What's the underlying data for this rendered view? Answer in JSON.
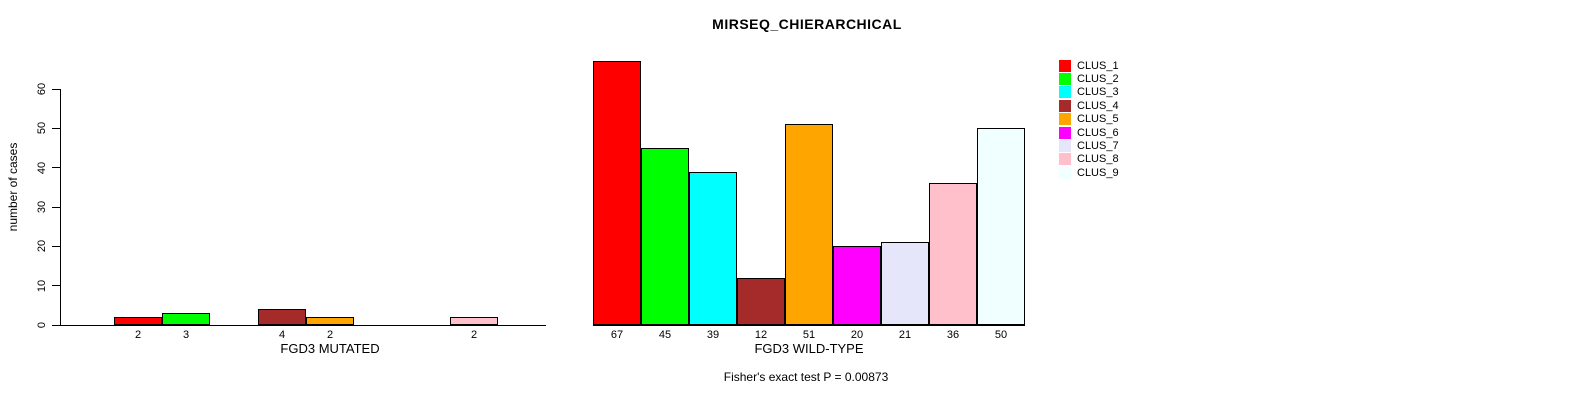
{
  "title": "MIRSEQ_CHIERARCHICAL",
  "y_axis": {
    "label": "number of cases",
    "ticks": [
      0,
      10,
      20,
      30,
      40,
      50,
      60
    ]
  },
  "panels": [
    {
      "xlabel": "FGD3 MUTATED"
    },
    {
      "xlabel": "FGD3 WILD-TYPE"
    }
  ],
  "footer": "Fisher's exact test P = 0.00873",
  "legend": {
    "items": [
      {
        "label": "CLUS_1",
        "color": "#FF0000"
      },
      {
        "label": "CLUS_2",
        "color": "#00FF00"
      },
      {
        "label": "CLUS_3",
        "color": "#00FFFF"
      },
      {
        "label": "CLUS_4",
        "color": "#A52A2A"
      },
      {
        "label": "CLUS_5",
        "color": "#FFA500"
      },
      {
        "label": "CLUS_6",
        "color": "#FF00FF"
      },
      {
        "label": "CLUS_7",
        "color": "#E6E6FA"
      },
      {
        "label": "CLUS_8",
        "color": "#FFC0CB"
      },
      {
        "label": "CLUS_9",
        "color": "#F0FFFF"
      }
    ]
  },
  "chart_data": {
    "type": "bar",
    "title": "MIRSEQ_CHIERARCHICAL",
    "ylabel": "number of cases",
    "ylim": [
      0,
      60
    ],
    "yticks": [
      0,
      10,
      20,
      30,
      40,
      50,
      60
    ],
    "grid": false,
    "legend_position": "top-right",
    "bar_value_labels": true,
    "categories": [
      "CLUS_1",
      "CLUS_2",
      "CLUS_3",
      "CLUS_4",
      "CLUS_5",
      "CLUS_6",
      "CLUS_7",
      "CLUS_8",
      "CLUS_9"
    ],
    "colors": [
      "#FF0000",
      "#00FF00",
      "#00FFFF",
      "#A52A2A",
      "#FFA500",
      "#FF00FF",
      "#E6E6FA",
      "#FFC0CB",
      "#F0FFFF"
    ],
    "series": [
      {
        "name": "FGD3 MUTATED",
        "values": [
          2,
          3,
          0,
          4,
          2,
          0,
          0,
          2,
          0
        ]
      },
      {
        "name": "FGD3 WILD-TYPE",
        "values": [
          67,
          45,
          39,
          12,
          51,
          20,
          21,
          36,
          50
        ]
      }
    ],
    "annotation": "Fisher's exact test P = 0.00873"
  }
}
